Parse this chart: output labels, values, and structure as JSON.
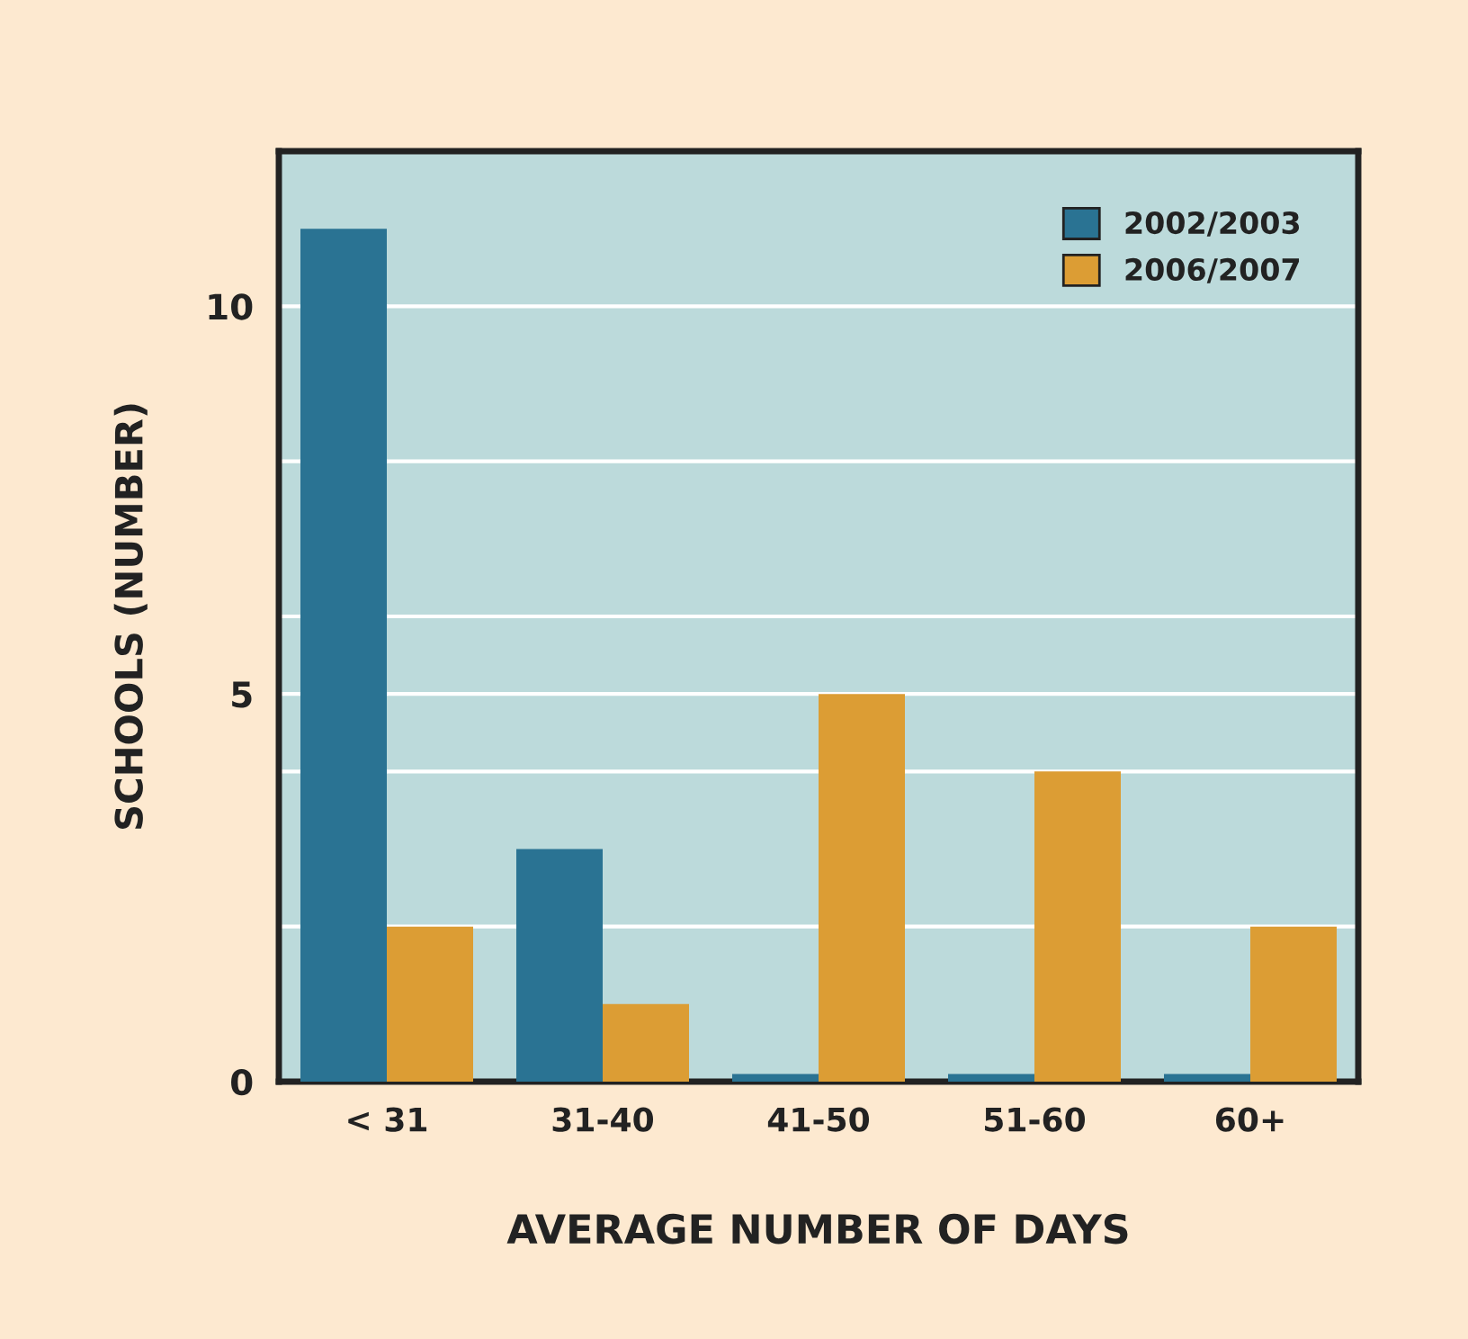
{
  "chart_data": {
    "type": "bar",
    "xlabel": "AVERAGE NUMBER OF DAYS",
    "ylabel": "SCHOOLS (NUMBER)",
    "categories": [
      "< 31",
      "31-40",
      "41-50",
      "51-60",
      "60+"
    ],
    "series": [
      {
        "name": "2002/2003",
        "color": "#2a7393",
        "values": [
          11,
          3,
          0.1,
          0.1,
          0.1
        ]
      },
      {
        "name": "2006/2007",
        "color": "#dc9d34",
        "values": [
          2,
          1,
          5,
          4,
          2
        ]
      }
    ],
    "ylim": [
      0,
      12
    ],
    "yticks": [
      0,
      {
        "value": 2,
        "label": null
      },
      {
        "value": 4,
        "label": null
      },
      5,
      {
        "value": 6,
        "label": null
      },
      {
        "value": 8,
        "label": null
      },
      10
    ],
    "grid": "y",
    "legend": "top right"
  }
}
